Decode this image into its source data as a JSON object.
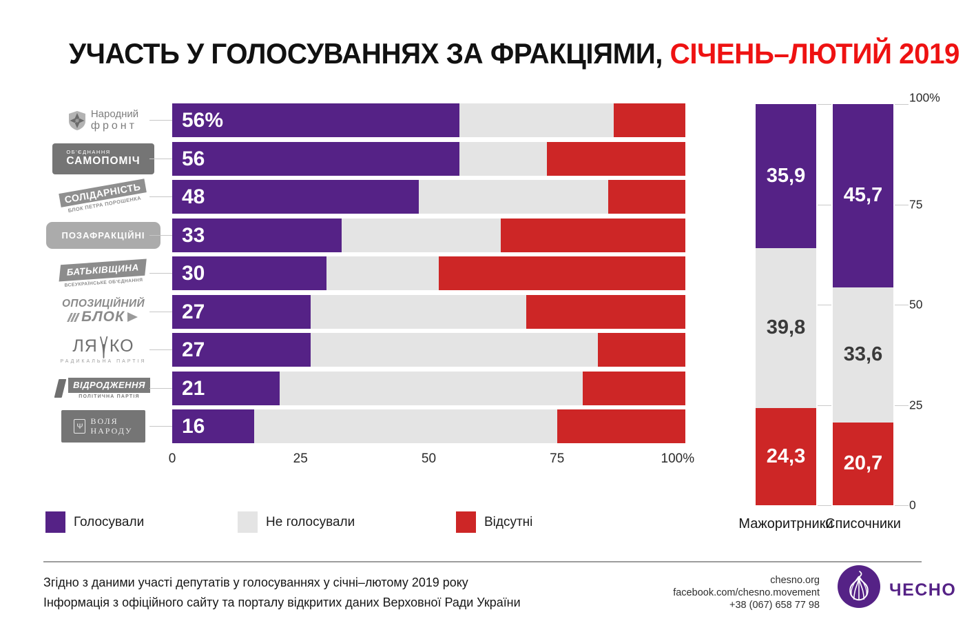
{
  "title": {
    "black": "УЧАСТЬ У ГОЛОСУВАННЯХ ЗА ФРАКЦІЯМИ, ",
    "red": "СІЧЕНЬ–ЛЮТИЙ 2019"
  },
  "colors": {
    "voted": "#552286",
    "not_voted": "#e4e4e4",
    "absent": "#cd2626",
    "title_red": "#ee1212",
    "brand_purple": "#552286",
    "label_gray": "#7d7d7d",
    "dark_value_text": "#3a3a3a"
  },
  "legend": [
    {
      "label": "Голосували",
      "color": "#552286"
    },
    {
      "label": "Не голосували",
      "color": "#e4e4e4"
    },
    {
      "label": "Відсутні",
      "color": "#cd2626"
    }
  ],
  "chart_data": [
    {
      "type": "bar",
      "orientation": "horizontal",
      "stacked": true,
      "unit": "percent",
      "xlim": [
        0,
        100
      ],
      "x_tick_values": [
        0,
        25,
        50,
        75,
        100
      ],
      "x_tick_labels": [
        "0",
        "25",
        "50",
        "75",
        "100%"
      ],
      "series_names": [
        "Голосували",
        "Не голосували",
        "Відсутні"
      ],
      "rows": [
        {
          "faction": "Народний фронт",
          "value_label": "56%",
          "voted": 56,
          "not_voted": 30,
          "absent": 14,
          "logo": {
            "style": "nf",
            "line1": "Народний",
            "line2": "фронт"
          }
        },
        {
          "faction": "Об'єднання Самопоміч",
          "value_label": "56",
          "voted": 56,
          "not_voted": 17,
          "absent": 27,
          "logo": {
            "style": "sam",
            "line1": "ОБ'ЄДНАННЯ",
            "line2": "САМОПОМІЧ"
          }
        },
        {
          "faction": "Солідарність — Блок Петра Порошенка",
          "value_label": "48",
          "voted": 48,
          "not_voted": 37,
          "absent": 15,
          "logo": {
            "style": "sol",
            "line1": "СОЛІДАРНІСТЬ",
            "line2": "БЛОК ПЕТРА ПОРОШЕНКА"
          }
        },
        {
          "faction": "Позафракційні",
          "value_label": "33",
          "voted": 33,
          "not_voted": 31,
          "absent": 36,
          "logo": {
            "style": "poz",
            "line1": "ПОЗАФРАКЦІЙНІ"
          }
        },
        {
          "faction": "Батьківщина — Всеукраїнське об'єднання",
          "value_label": "30",
          "voted": 30,
          "not_voted": 22,
          "absent": 48,
          "logo": {
            "style": "bat",
            "line1": "БАТЬКІВЩИНА",
            "line2": "ВСЕУКРАЇНСЬКЕ ОБ'ЄДНАННЯ"
          }
        },
        {
          "faction": "Опозиційний блок",
          "value_label": "27",
          "voted": 27,
          "not_voted": 42,
          "absent": 31,
          "logo": {
            "style": "opo",
            "line1": "ОПОЗИЦІЙНИЙ",
            "line2": "БЛОК"
          }
        },
        {
          "faction": "Ляшко — Радикальна партія",
          "value_label": "27",
          "voted": 27,
          "not_voted": 56,
          "absent": 17,
          "logo": {
            "style": "lya",
            "line1": "ЛЯ",
            "line2": "КО",
            "sub": "РАДИКАЛЬНА ПАРТІЯ"
          }
        },
        {
          "faction": "Відродження — політична партія",
          "value_label": "21",
          "voted": 21,
          "not_voted": 59,
          "absent": 20,
          "logo": {
            "style": "vid",
            "line1": "ВІДРОДЖЕННЯ",
            "line2": "ПОЛІТИЧНА ПАРТІЯ"
          }
        },
        {
          "faction": "Воля народу",
          "value_label": "16",
          "voted": 16,
          "not_voted": 59,
          "absent": 25,
          "logo": {
            "style": "vol",
            "line1": "ВОЛЯ",
            "line2": "НАРОДУ"
          }
        }
      ]
    },
    {
      "type": "bar",
      "orientation": "vertical",
      "stacked": true,
      "unit": "percent",
      "ylim": [
        0,
        100
      ],
      "y_tick_values": [
        0,
        25,
        50,
        75,
        100
      ],
      "y_tick_labels": [
        "0",
        "25",
        "50",
        "75",
        "100%"
      ],
      "series_names": [
        "Голосували",
        "Не голосували",
        "Відсутні"
      ],
      "columns": [
        {
          "label": "Мажоритрники",
          "voted": 35.9,
          "not_voted": 39.8,
          "absent": 24.3,
          "display": {
            "voted": "35,9",
            "not_voted": "39,8",
            "absent": "24,3"
          }
        },
        {
          "label": "Списочники",
          "voted": 45.7,
          "not_voted": 33.6,
          "absent": 20.7,
          "display": {
            "voted": "45,7",
            "not_voted": "33,6",
            "absent": "20,7"
          }
        }
      ]
    }
  ],
  "footer": {
    "source_line1": "Згідно з даними участі депутатів у голосуваннях у січні–лютому 2019 року",
    "source_line2": "Інформація з офіційного сайту та порталу відкритих даних Верховної Ради України",
    "contact_site": "chesno.org",
    "contact_facebook": "facebook.com/chesno.movement",
    "contact_phone": "+38 (067) 658 77 98",
    "brand": "ЧЕСНО"
  }
}
